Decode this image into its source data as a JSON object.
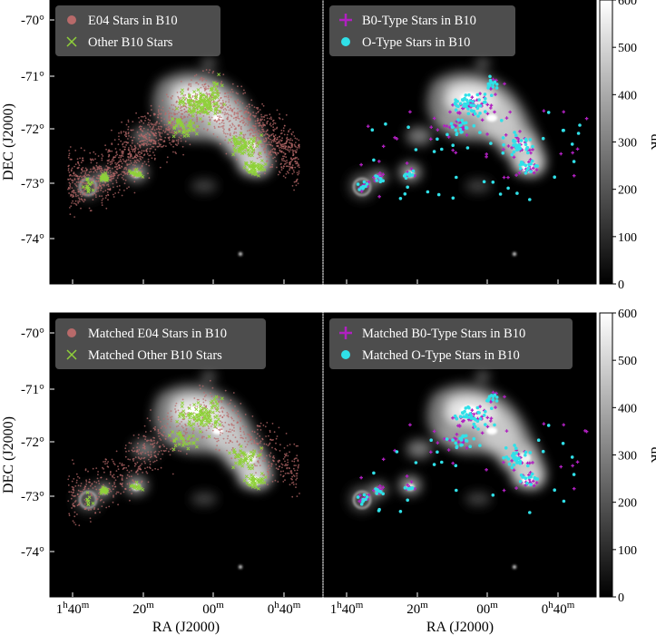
{
  "chart_data": {
    "type": "scatter",
    "description_type": "sky-map scatter overlays on a grayscale dR image (2x2 panels)",
    "xlabel": "RA (J2000)",
    "ylabel": "DEC (J2000)",
    "x_ticks": [
      "1h40m",
      "20m",
      "00m",
      "0h40m"
    ],
    "x_tick_parts": [
      {
        "a": "1",
        "b": "h",
        "c": "40",
        "d": "m"
      },
      {
        "a": "20",
        "b": "m",
        "c": "",
        "d": ""
      },
      {
        "a": "00",
        "b": "m",
        "c": "",
        "d": ""
      },
      {
        "a": "0",
        "b": "h",
        "c": "40",
        "d": "m"
      }
    ],
    "y_ticks": [
      "-70°",
      "-71°",
      "-72°",
      "-73°",
      "-74°"
    ],
    "colorbar": {
      "label": "dR",
      "ticks": [
        "0",
        "100",
        "200",
        "300",
        "400",
        "500",
        "600"
      ],
      "range": [
        0,
        600
      ],
      "colormap": "gray"
    },
    "panels": [
      {
        "name": "top-left",
        "legend": [
          {
            "label": "E04 Stars in B10",
            "marker": "circle",
            "color": "#b86a6a"
          },
          {
            "label": "Other B10 Stars",
            "marker": "x",
            "color": "#8fd13a"
          }
        ]
      },
      {
        "name": "top-right",
        "legend": [
          {
            "label": "B0-Type Stars in B10",
            "marker": "plus",
            "color": "#b020c0"
          },
          {
            "label": "O-Type Stars in B10",
            "marker": "circle",
            "color": "#30e0e8"
          }
        ]
      },
      {
        "name": "bottom-left",
        "legend": [
          {
            "label": "Matched E04 Stars in B10",
            "marker": "circle",
            "color": "#b86a6a"
          },
          {
            "label": "Matched Other B10 Stars",
            "marker": "x",
            "color": "#8fd13a"
          }
        ]
      },
      {
        "name": "bottom-right",
        "legend": [
          {
            "label": "Matched B0-Type Stars in B10",
            "marker": "plus",
            "color": "#b020c0"
          },
          {
            "label": "Matched O-Type Stars in B10",
            "marker": "circle",
            "color": "#30e0e8"
          }
        ]
      }
    ]
  }
}
